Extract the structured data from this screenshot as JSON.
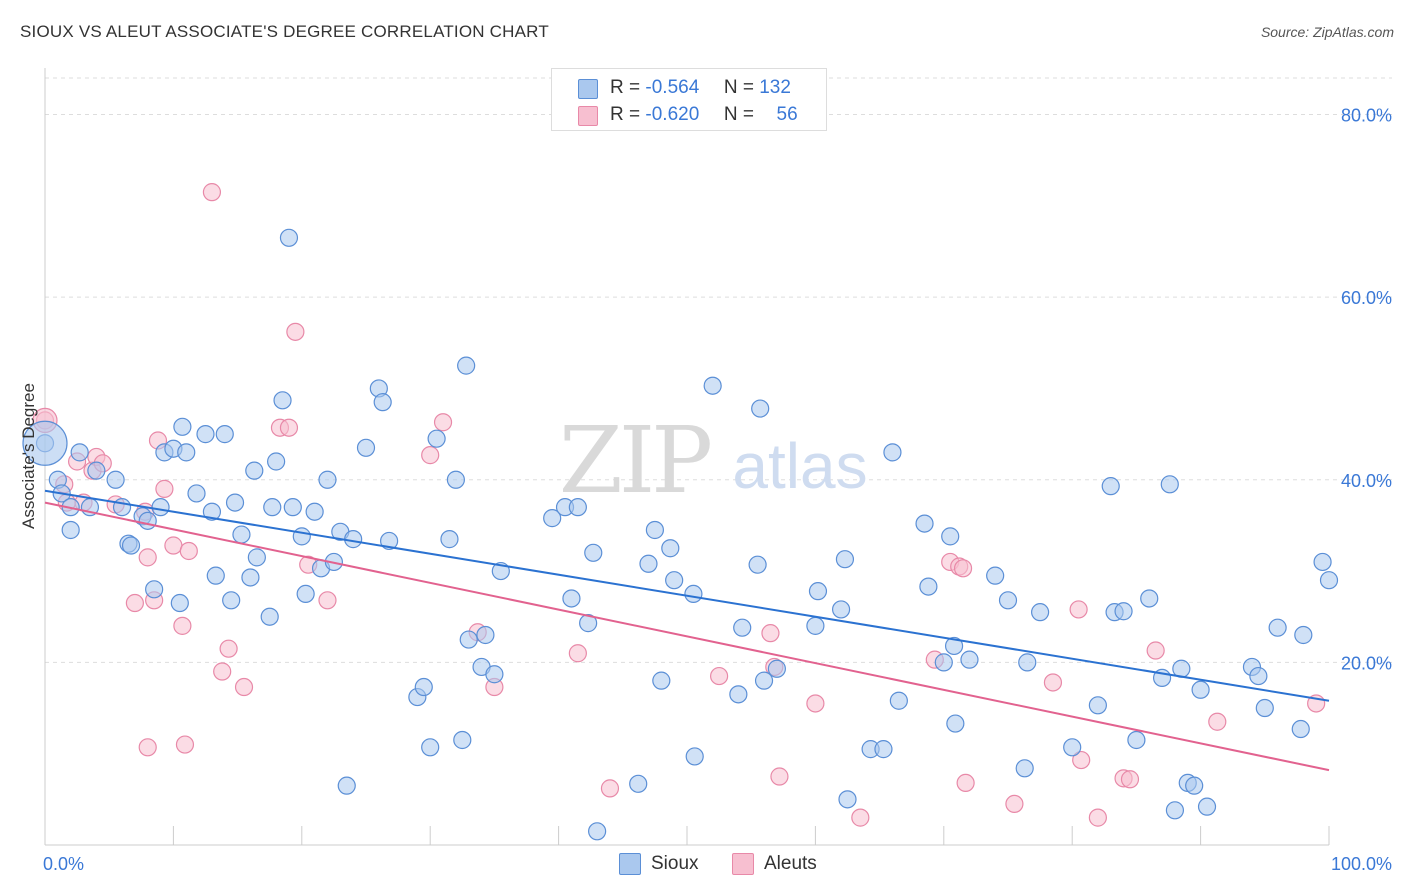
{
  "header": {
    "title": "SIOUX VS ALEUT ASSOCIATE'S DEGREE CORRELATION CHART",
    "source": "Source: ZipAtlas.com"
  },
  "legend": {
    "rows": [
      {
        "r_label": "R =",
        "r_value": "-0.564",
        "n_label": "N =",
        "n_value": "132"
      },
      {
        "r_label": "R =",
        "r_value": "-0.620",
        "n_label": "N =",
        "n_value": "56"
      }
    ]
  },
  "bottom_legend": {
    "sioux": "Sioux",
    "aleuts": "Aleuts"
  },
  "watermark": {
    "zip": "ZIP",
    "atlas": "atlas"
  },
  "colors": {
    "sioux_fill": "#aac8ee",
    "sioux_stroke": "#5b8fd6",
    "sioux_line": "#2b72d1",
    "aleut_fill": "#f7bfd0",
    "aleut_stroke": "#e889a8",
    "aleut_line": "#e2628f",
    "tick_label": "#3a78d6",
    "grid": "#dddddd"
  },
  "chart_data": {
    "type": "scatter",
    "title": "SIOUX VS ALEUT ASSOCIATE'S DEGREE CORRELATION CHART",
    "xlabel": "",
    "ylabel": "Associate's Degree",
    "xlim": [
      0,
      100
    ],
    "ylim": [
      0,
      84
    ],
    "x_tick_labels": [
      "0.0%",
      "100.0%"
    ],
    "y_ticks": [
      20,
      40,
      60,
      80
    ],
    "y_tick_labels": [
      "20.0%",
      "40.0%",
      "60.0%",
      "80.0%"
    ],
    "grid": true,
    "legend_position": "top-center",
    "series": [
      {
        "name": "Sioux",
        "r": -0.564,
        "n": 132,
        "trend": {
          "x": [
            0,
            100
          ],
          "y": [
            38.8,
            15.8
          ]
        },
        "points": [
          [
            0,
            44
          ],
          [
            1,
            40
          ],
          [
            1.3,
            38.5
          ],
          [
            2,
            34.5
          ],
          [
            2,
            37
          ],
          [
            2.7,
            43
          ],
          [
            3.5,
            37
          ],
          [
            4,
            41
          ],
          [
            5.5,
            40
          ],
          [
            6,
            37
          ],
          [
            6.5,
            33
          ],
          [
            6.7,
            32.8
          ],
          [
            7.6,
            36
          ],
          [
            8,
            35.5
          ],
          [
            8.5,
            28
          ],
          [
            9,
            37
          ],
          [
            9.3,
            43
          ],
          [
            10,
            43.4
          ],
          [
            10.5,
            26.5
          ],
          [
            10.7,
            45.8
          ],
          [
            11,
            43
          ],
          [
            11.8,
            38.5
          ],
          [
            12.5,
            45
          ],
          [
            13,
            36.5
          ],
          [
            13.3,
            29.5
          ],
          [
            14,
            45
          ],
          [
            14.5,
            26.8
          ],
          [
            14.8,
            37.5
          ],
          [
            15.3,
            34
          ],
          [
            16,
            29.3
          ],
          [
            16.3,
            41
          ],
          [
            16.5,
            31.5
          ],
          [
            17.5,
            25
          ],
          [
            17.7,
            37
          ],
          [
            18,
            42
          ],
          [
            18.5,
            48.7
          ],
          [
            19,
            66.5
          ],
          [
            19.3,
            37
          ],
          [
            20,
            33.8
          ],
          [
            20.3,
            27.5
          ],
          [
            21.5,
            30.3
          ],
          [
            21,
            36.5
          ],
          [
            22,
            40
          ],
          [
            22.5,
            31
          ],
          [
            23,
            34.3
          ],
          [
            24,
            33.5
          ],
          [
            25,
            43.5
          ],
          [
            26,
            50
          ],
          [
            26.3,
            48.5
          ],
          [
            26.8,
            33.3
          ],
          [
            29,
            16.2
          ],
          [
            29.5,
            17.3
          ],
          [
            30,
            10.7
          ],
          [
            30.5,
            44.5
          ],
          [
            31.5,
            33.5
          ],
          [
            32,
            40
          ],
          [
            32.5,
            11.5
          ],
          [
            32.8,
            52.5
          ],
          [
            33,
            22.5
          ],
          [
            34,
            19.5
          ],
          [
            34.3,
            23
          ],
          [
            35,
            18.7
          ],
          [
            35.5,
            30
          ],
          [
            39.5,
            35.8
          ],
          [
            40.5,
            37
          ],
          [
            41,
            27
          ],
          [
            41.5,
            37
          ],
          [
            42.3,
            24.3
          ],
          [
            42.7,
            32
          ],
          [
            46.2,
            6.7
          ],
          [
            47,
            30.8
          ],
          [
            47.5,
            34.5
          ],
          [
            48,
            18
          ],
          [
            48.7,
            32.5
          ],
          [
            49,
            29
          ],
          [
            50.5,
            27.5
          ],
          [
            50.6,
            9.7
          ],
          [
            52,
            50.3
          ],
          [
            54,
            16.5
          ],
          [
            54.3,
            23.8
          ],
          [
            55.5,
            30.7
          ],
          [
            55.7,
            47.8
          ],
          [
            56,
            18
          ],
          [
            57,
            19.3
          ],
          [
            60,
            24
          ],
          [
            60.2,
            27.8
          ],
          [
            62,
            25.8
          ],
          [
            62.3,
            31.3
          ],
          [
            62.5,
            5
          ],
          [
            64.3,
            10.5
          ],
          [
            65.3,
            10.5
          ],
          [
            66,
            43
          ],
          [
            66.5,
            15.8
          ],
          [
            68.5,
            35.2
          ],
          [
            68.8,
            28.3
          ],
          [
            70,
            20
          ],
          [
            70.5,
            33.8
          ],
          [
            70.8,
            21.8
          ],
          [
            70.9,
            13.3
          ],
          [
            72,
            20.3
          ],
          [
            74,
            29.5
          ],
          [
            75,
            26.8
          ],
          [
            76.3,
            8.4
          ],
          [
            76.5,
            20
          ],
          [
            77.5,
            25.5
          ],
          [
            80,
            10.7
          ],
          [
            82,
            15.3
          ],
          [
            83,
            39.3
          ],
          [
            83.3,
            25.5
          ],
          [
            84,
            25.6
          ],
          [
            85,
            11.5
          ],
          [
            86,
            27
          ],
          [
            87,
            18.3
          ],
          [
            87.6,
            39.5
          ],
          [
            88,
            3.8
          ],
          [
            88.5,
            19.3
          ],
          [
            89,
            6.8
          ],
          [
            89.5,
            6.5
          ],
          [
            90,
            17
          ],
          [
            90.5,
            4.2
          ],
          [
            94,
            19.5
          ],
          [
            94.5,
            18.5
          ],
          [
            95,
            15
          ],
          [
            96,
            23.8
          ],
          [
            97.8,
            12.7
          ],
          [
            98,
            23
          ],
          [
            99.5,
            31
          ],
          [
            100,
            29
          ],
          [
            43,
            1.5
          ],
          [
            23.5,
            6.5
          ]
        ]
      },
      {
        "name": "Aleuts",
        "r": -0.62,
        "n": 56,
        "trend": {
          "x": [
            0,
            100
          ],
          "y": [
            37.5,
            8.2
          ]
        },
        "points": [
          [
            0,
            46.5
          ],
          [
            1.5,
            39.5
          ],
          [
            1.7,
            37.5
          ],
          [
            2.5,
            42
          ],
          [
            3,
            37.5
          ],
          [
            3.7,
            41
          ],
          [
            4,
            42.5
          ],
          [
            4.5,
            41.8
          ],
          [
            5.5,
            37.3
          ],
          [
            7,
            26.5
          ],
          [
            7.8,
            36.5
          ],
          [
            8,
            31.5
          ],
          [
            8,
            10.7
          ],
          [
            8.5,
            26.8
          ],
          [
            8.8,
            44.3
          ],
          [
            9.3,
            39
          ],
          [
            10,
            32.8
          ],
          [
            10.7,
            24
          ],
          [
            10.9,
            11
          ],
          [
            11.2,
            32.2
          ],
          [
            13,
            71.5
          ],
          [
            13.8,
            19
          ],
          [
            14.3,
            21.5
          ],
          [
            15.5,
            17.3
          ],
          [
            18.3,
            45.7
          ],
          [
            19,
            45.7
          ],
          [
            19.5,
            56.2
          ],
          [
            20.5,
            30.7
          ],
          [
            22,
            26.8
          ],
          [
            30,
            42.7
          ],
          [
            31,
            46.3
          ],
          [
            33.7,
            23.3
          ],
          [
            35,
            17.3
          ],
          [
            41.5,
            21
          ],
          [
            44,
            6.2
          ],
          [
            52.5,
            18.5
          ],
          [
            56.5,
            23.2
          ],
          [
            56.8,
            19.5
          ],
          [
            57.2,
            7.5
          ],
          [
            60,
            15.5
          ],
          [
            63.5,
            3
          ],
          [
            69.3,
            20.3
          ],
          [
            70.5,
            31
          ],
          [
            71.2,
            30.5
          ],
          [
            71.5,
            30.3
          ],
          [
            71.7,
            6.8
          ],
          [
            75.5,
            4.5
          ],
          [
            78.5,
            17.8
          ],
          [
            80.5,
            25.8
          ],
          [
            80.7,
            9.3
          ],
          [
            82,
            3
          ],
          [
            84,
            7.3
          ],
          [
            84.5,
            7.2
          ],
          [
            86.5,
            21.3
          ],
          [
            91.3,
            13.5
          ],
          [
            99,
            15.5
          ]
        ]
      }
    ]
  }
}
